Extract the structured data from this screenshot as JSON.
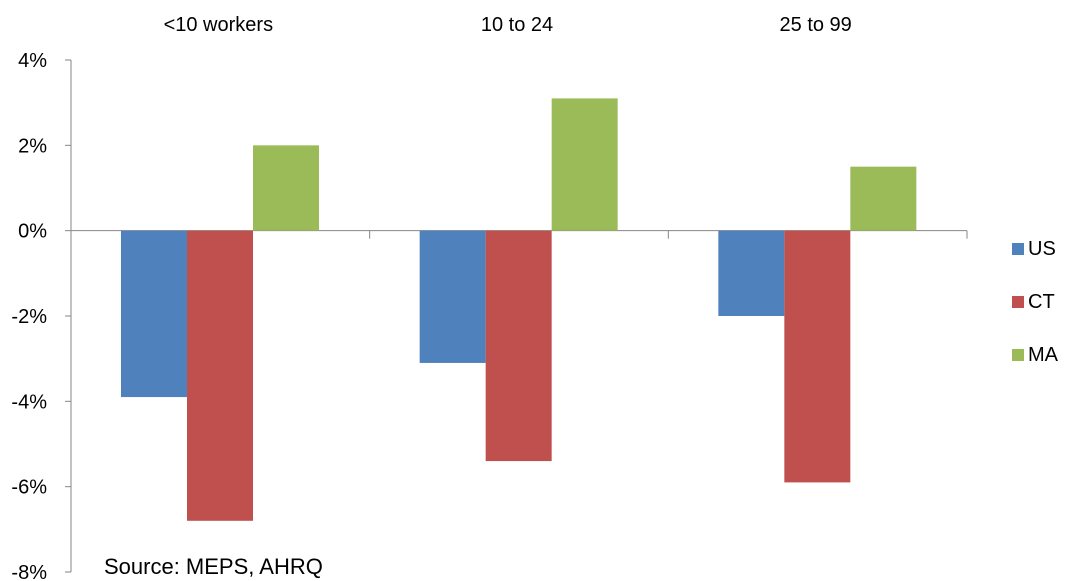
{
  "chart_data": {
    "type": "bar",
    "categories": [
      "<10 workers",
      "10 to 24",
      "25 to 99"
    ],
    "series": [
      {
        "name": "US",
        "color": "#4F81BD",
        "values": [
          -3.9,
          -3.1,
          -2.0
        ]
      },
      {
        "name": "CT",
        "color": "#C0504D",
        "values": [
          -6.8,
          -5.4,
          -5.9
        ]
      },
      {
        "name": "MA",
        "color": "#9BBB59",
        "values": [
          2.0,
          3.1,
          1.5
        ]
      }
    ],
    "ylim": [
      -8,
      4
    ],
    "yticks": [
      4,
      2,
      0,
      -2,
      -4,
      -6,
      -8
    ],
    "ytick_labels": [
      "4%",
      "2%",
      "0%",
      "-2%",
      "-4%",
      "-6%",
      "-8%"
    ],
    "category_labels_position": "top",
    "legend_position": "right",
    "grid": false,
    "annotation": "Source: MEPS, AHRQ"
  }
}
